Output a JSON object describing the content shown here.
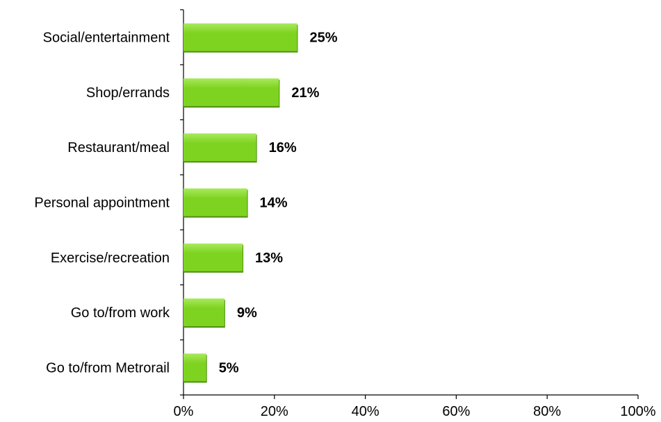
{
  "chart_data": {
    "type": "bar",
    "orientation": "horizontal",
    "categories": [
      "Social/entertainment",
      "Shop/errands",
      "Restaurant/meal",
      "Personal appointment",
      "Exercise/recreation",
      "Go to/from work",
      "Go to/from Metrorail"
    ],
    "values": [
      25,
      21,
      16,
      14,
      13,
      9,
      5
    ],
    "value_labels": [
      "25%",
      "21%",
      "16%",
      "14%",
      "13%",
      "9%",
      "5%"
    ],
    "xlim": [
      0,
      100
    ],
    "xticks": [
      0,
      20,
      40,
      60,
      80,
      100
    ],
    "xtick_labels": [
      "0%",
      "20%",
      "40%",
      "60%",
      "80%",
      "100%"
    ],
    "title": "",
    "xlabel": "",
    "ylabel": "",
    "grid": false,
    "legend": "none",
    "colors": {
      "bar_fill": "#7ED321",
      "bar_top_highlight": "#A8EA5C",
      "bar_shadow": "#4E8F12",
      "axis": "#000000",
      "text": "#000000"
    }
  }
}
